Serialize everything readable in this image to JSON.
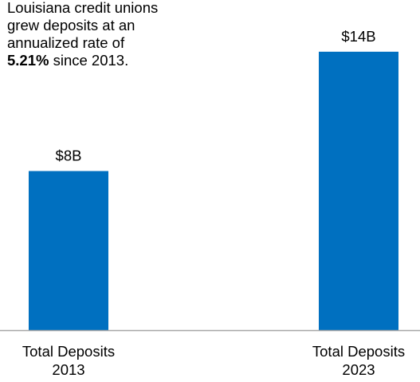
{
  "annotation": {
    "lines": [
      "Louisiana credit unions",
      "grew deposits at an",
      "annualized  rate of"
    ],
    "rate": "5.21%",
    "rate_suffix": " since 2013."
  },
  "chart_data": {
    "type": "bar",
    "title": "",
    "xlabel": "",
    "ylabel": "",
    "categories": [
      [
        "Total  Deposits",
        "2013"
      ],
      [
        "Total  Deposits",
        "2023"
      ]
    ],
    "values": [
      8,
      14
    ],
    "data_labels": [
      "$8B",
      "$14B"
    ],
    "unit": "$B",
    "ylim": [
      0,
      16.6
    ],
    "grid": false,
    "legend": "none",
    "colors": {
      "bar": "#0070C0",
      "axis": "#A6A6A6",
      "text": "#000000"
    }
  }
}
